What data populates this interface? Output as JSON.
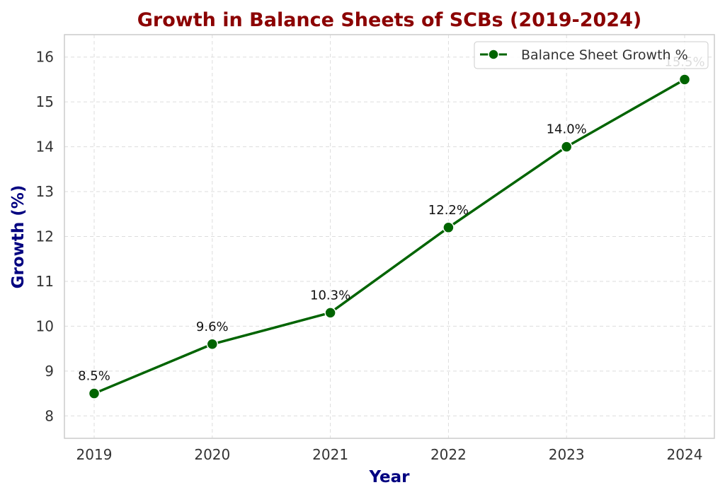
{
  "chart_data": {
    "type": "line",
    "title": "Growth in Balance Sheets of SCBs (2019-2024)",
    "xlabel": "Year",
    "ylabel": "Growth (%)",
    "categories": [
      "2019",
      "2020",
      "2021",
      "2022",
      "2023",
      "2024"
    ],
    "series": [
      {
        "name": "Balance Sheet Growth %",
        "values": [
          8.5,
          9.6,
          10.3,
          12.2,
          14.0,
          15.5
        ],
        "labels": [
          "8.5%",
          "9.6%",
          "10.3%",
          "12.2%",
          "14.0%",
          "15.5%"
        ]
      }
    ],
    "ylim": [
      7.5,
      16.5
    ],
    "yticks": [
      "8",
      "9",
      "10",
      "11",
      "12",
      "13",
      "14",
      "15",
      "16"
    ],
    "grid": true,
    "legend_position": "top-right",
    "colors": {
      "line": "#006400",
      "marker_edge": "#ffffff",
      "title": "#8b0000",
      "axis_label": "#000080",
      "grid": "#dddddd",
      "frame": "#cccccc"
    }
  }
}
